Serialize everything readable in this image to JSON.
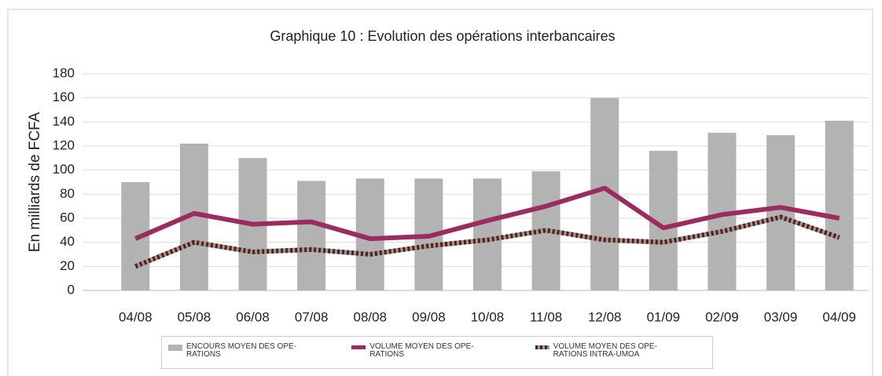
{
  "chart_data": {
    "type": "bar",
    "title": "Graphique 10 : Evolution des opérations interbancaires",
    "y_label": "En milliards de FCFA",
    "categories": [
      "04/08",
      "05/08",
      "06/08",
      "07/08",
      "08/08",
      "09/08",
      "10/08",
      "11/08",
      "12/08",
      "01/09",
      "02/09",
      "03/09",
      "04/09"
    ],
    "series": [
      {
        "name": "ENCOURS MOYEN DES OPE-\nRATIONS",
        "type": "bar",
        "color": "#b3b3b3",
        "values": [
          90,
          122,
          110,
          91,
          93,
          93,
          93,
          99,
          160,
          116,
          131,
          129,
          141
        ]
      },
      {
        "name": "VOLUME MOYEN DES OPE-\nRATIONS",
        "type": "line",
        "color": "#9b2c5e",
        "values": [
          43,
          64,
          55,
          57,
          43,
          45,
          58,
          70,
          85,
          52,
          63,
          69,
          60
        ]
      },
      {
        "name": "VOLUME MOYEN DES OPE-\nRATIONS INTRA-UMOA",
        "type": "dotted",
        "color": "#5a1c14",
        "values": [
          20,
          40,
          32,
          34,
          30,
          37,
          42,
          50,
          42,
          40,
          49,
          61,
          44
        ]
      }
    ],
    "ylim": [
      0,
      180
    ],
    "yticks": [
      0,
      20,
      40,
      60,
      80,
      100,
      120,
      140,
      160,
      180
    ],
    "grid": true
  }
}
